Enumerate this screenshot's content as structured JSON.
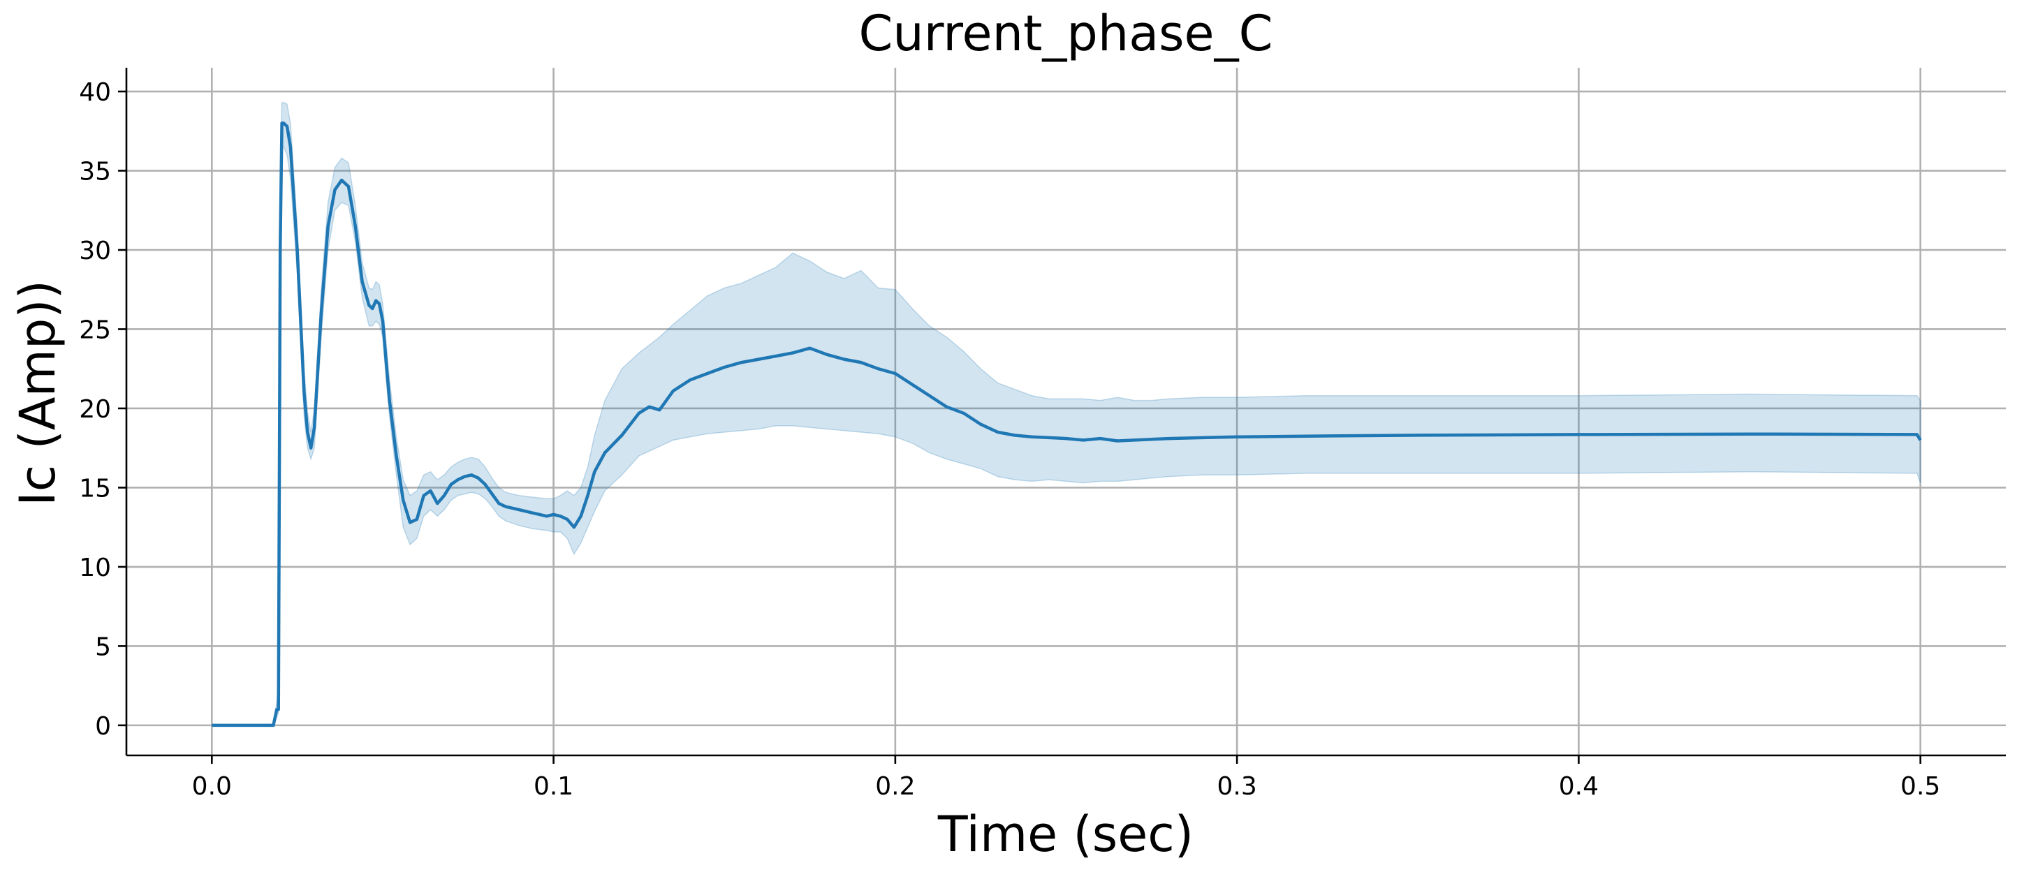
{
  "chart_data": {
    "type": "line",
    "title": "Current_phase_C",
    "xlabel": "Time (sec)",
    "ylabel": "Ic (Amp))",
    "xlim": [
      -0.025,
      0.525
    ],
    "ylim": [
      -1.9,
      41.5
    ],
    "xticks": [
      0.0,
      0.1,
      0.2,
      0.3,
      0.4,
      0.5
    ],
    "xtick_labels": [
      "0.0",
      "0.1",
      "0.2",
      "0.3",
      "0.4",
      "0.5"
    ],
    "yticks": [
      0,
      5,
      10,
      15,
      20,
      25,
      30,
      35,
      40
    ],
    "ytick_labels": [
      "0",
      "5",
      "10",
      "15",
      "20",
      "25",
      "30",
      "35",
      "40"
    ],
    "grid": true,
    "legend": "none",
    "colors": {
      "line": "#1f77b4",
      "band": "#1f77b4",
      "band_opacity": 0.2
    },
    "series": [
      {
        "x": [
          0.0,
          0.005,
          0.01,
          0.015,
          0.018,
          0.019,
          0.0195,
          0.02,
          0.0205,
          0.021,
          0.022,
          0.023,
          0.025,
          0.027,
          0.028,
          0.029,
          0.03,
          0.032,
          0.034,
          0.036,
          0.038,
          0.04,
          0.042,
          0.044,
          0.046,
          0.047,
          0.048,
          0.049,
          0.05,
          0.051,
          0.052,
          0.054,
          0.056,
          0.058,
          0.06,
          0.062,
          0.064,
          0.066,
          0.068,
          0.07,
          0.072,
          0.074,
          0.076,
          0.078,
          0.08,
          0.082,
          0.084,
          0.086,
          0.09,
          0.094,
          0.098,
          0.1,
          0.102,
          0.104,
          0.106,
          0.108,
          0.11,
          0.112,
          0.115,
          0.12,
          0.125,
          0.128,
          0.131,
          0.135,
          0.14,
          0.145,
          0.15,
          0.155,
          0.16,
          0.165,
          0.17,
          0.175,
          0.18,
          0.185,
          0.19,
          0.195,
          0.2,
          0.205,
          0.21,
          0.215,
          0.22,
          0.225,
          0.23,
          0.235,
          0.24,
          0.245,
          0.25,
          0.255,
          0.26,
          0.265,
          0.27,
          0.275,
          0.28,
          0.29,
          0.3,
          0.32,
          0.35,
          0.4,
          0.45,
          0.499,
          0.5
        ],
        "y": [
          0,
          0,
          0,
          0,
          0,
          1.0,
          1.0,
          30.0,
          38.0,
          38.0,
          37.8,
          36.5,
          30.0,
          21.0,
          18.5,
          17.5,
          18.8,
          26.0,
          31.5,
          33.8,
          34.4,
          34.0,
          31.5,
          28.0,
          26.5,
          26.3,
          26.8,
          26.6,
          25.5,
          23.0,
          20.5,
          17.0,
          14.2,
          12.8,
          13.0,
          14.5,
          14.8,
          14.0,
          14.5,
          15.2,
          15.5,
          15.7,
          15.8,
          15.6,
          15.2,
          14.6,
          14.0,
          13.8,
          13.6,
          13.4,
          13.2,
          13.3,
          13.2,
          13.0,
          12.5,
          13.2,
          14.5,
          16.0,
          17.2,
          18.3,
          19.7,
          20.1,
          19.9,
          21.1,
          21.8,
          22.2,
          22.6,
          22.9,
          23.1,
          23.3,
          23.5,
          23.8,
          23.4,
          23.1,
          22.9,
          22.5,
          22.2,
          21.5,
          20.8,
          20.1,
          19.7,
          19.0,
          18.5,
          18.3,
          18.2,
          18.15,
          18.1,
          18.0,
          18.1,
          17.95,
          18.0,
          18.05,
          18.1,
          18.15,
          18.2,
          18.25,
          18.3,
          18.35,
          18.38,
          18.35,
          18.0
        ],
        "lower": [
          0,
          0,
          0,
          0,
          0,
          0.5,
          0.8,
          22.0,
          36.5,
          36.5,
          36.0,
          34.5,
          28.5,
          19.5,
          17.5,
          16.8,
          17.5,
          24.5,
          30.0,
          32.5,
          33.0,
          32.8,
          30.5,
          27.0,
          25.2,
          25.2,
          25.5,
          25.3,
          24.5,
          21.8,
          19.5,
          15.8,
          12.5,
          11.4,
          11.8,
          13.2,
          13.6,
          13.2,
          13.6,
          14.2,
          14.5,
          14.6,
          14.7,
          14.6,
          14.3,
          13.8,
          13.2,
          12.9,
          12.6,
          12.4,
          12.3,
          12.2,
          12.2,
          11.8,
          10.8,
          11.5,
          12.5,
          13.5,
          14.8,
          15.8,
          17.0,
          17.3,
          17.6,
          18.0,
          18.2,
          18.4,
          18.5,
          18.6,
          18.7,
          18.9,
          18.9,
          18.8,
          18.7,
          18.6,
          18.5,
          18.4,
          18.2,
          17.8,
          17.2,
          16.8,
          16.5,
          16.2,
          15.7,
          15.5,
          15.4,
          15.5,
          15.4,
          15.3,
          15.4,
          15.4,
          15.5,
          15.6,
          15.7,
          15.8,
          15.8,
          15.9,
          15.9,
          15.9,
          16.0,
          15.9,
          15.3
        ],
        "upper": [
          0,
          0,
          0,
          0,
          0,
          1.5,
          2.8,
          34.0,
          39.3,
          39.3,
          39.2,
          38.0,
          31.5,
          22.5,
          19.8,
          18.5,
          20.0,
          27.5,
          33.0,
          35.2,
          35.8,
          35.5,
          32.8,
          29.2,
          27.6,
          27.5,
          28.0,
          27.8,
          26.6,
          24.2,
          21.8,
          18.2,
          15.5,
          14.5,
          14.8,
          15.8,
          16.0,
          15.5,
          15.8,
          16.3,
          16.6,
          16.8,
          16.9,
          16.8,
          16.3,
          15.6,
          15.0,
          14.7,
          14.5,
          14.4,
          14.3,
          14.3,
          14.5,
          14.8,
          14.5,
          15.0,
          16.3,
          18.3,
          20.5,
          22.5,
          23.5,
          24.0,
          24.5,
          25.3,
          26.2,
          27.1,
          27.6,
          27.9,
          28.4,
          28.9,
          29.8,
          29.3,
          28.6,
          28.2,
          28.7,
          27.6,
          27.5,
          26.3,
          25.2,
          24.5,
          23.6,
          22.5,
          21.6,
          21.2,
          20.8,
          20.6,
          20.6,
          20.6,
          20.5,
          20.7,
          20.5,
          20.5,
          20.6,
          20.7,
          20.7,
          20.8,
          20.8,
          20.8,
          20.9,
          20.8,
          20.5
        ]
      }
    ]
  }
}
